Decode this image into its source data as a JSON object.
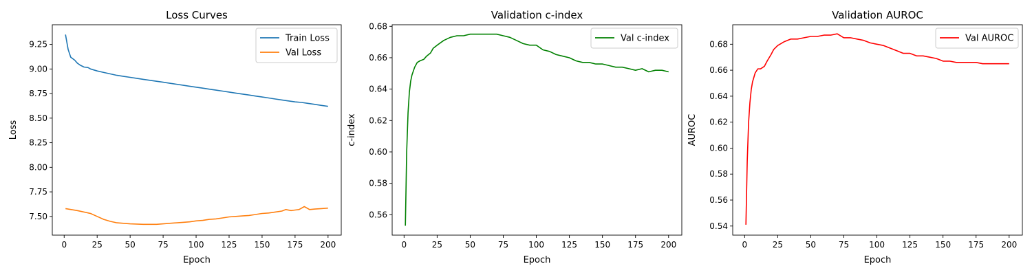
{
  "figure": {
    "charts": [
      "loss-curves",
      "val-cindex",
      "val-auroc"
    ]
  },
  "colors": {
    "train_loss": "#1f77b4",
    "val_loss": "#ff7f0e",
    "val_cindex": "#008000",
    "val_auroc": "#ff0000",
    "axes": "#000000",
    "background": "#ffffff",
    "legend_border": "#cccccc"
  },
  "chart_data": [
    {
      "id": "loss-curves",
      "type": "line",
      "title": "Loss Curves",
      "xlabel": "Epoch",
      "ylabel": "Loss",
      "xlim": [
        -9,
        210
      ],
      "ylim": [
        7.31,
        9.45
      ],
      "xticks": [
        0,
        25,
        50,
        75,
        100,
        125,
        150,
        175,
        200
      ],
      "yticks": [
        7.5,
        7.75,
        8.0,
        8.25,
        8.5,
        8.75,
        9.0,
        9.25
      ],
      "ytick_labels": [
        "7.50",
        "7.75",
        "8.00",
        "8.25",
        "8.50",
        "8.75",
        "9.00",
        "9.25"
      ],
      "grid": false,
      "legend": "top-right",
      "series": [
        {
          "name": "Train Loss",
          "color_key": "train_loss",
          "x": [
            1,
            3,
            5,
            8,
            10,
            12,
            15,
            18,
            20,
            25,
            30,
            35,
            40,
            45,
            50,
            55,
            60,
            65,
            70,
            75,
            80,
            85,
            90,
            95,
            100,
            105,
            110,
            115,
            120,
            125,
            130,
            135,
            140,
            145,
            150,
            155,
            160,
            165,
            170,
            175,
            180,
            185,
            190,
            195,
            200
          ],
          "y": [
            9.35,
            9.2,
            9.12,
            9.09,
            9.06,
            9.04,
            9.02,
            9.015,
            9.0,
            8.98,
            8.965,
            8.95,
            8.935,
            8.925,
            8.915,
            8.905,
            8.895,
            8.885,
            8.875,
            8.865,
            8.855,
            8.845,
            8.835,
            8.825,
            8.815,
            8.805,
            8.795,
            8.785,
            8.775,
            8.765,
            8.755,
            8.745,
            8.735,
            8.725,
            8.715,
            8.705,
            8.695,
            8.685,
            8.675,
            8.665,
            8.66,
            8.65,
            8.64,
            8.63,
            8.62
          ]
        },
        {
          "name": "Val Loss",
          "color_key": "val_loss",
          "x": [
            1,
            10,
            20,
            25,
            30,
            35,
            40,
            50,
            60,
            70,
            75,
            80,
            90,
            95,
            100,
            105,
            110,
            115,
            120,
            125,
            130,
            135,
            140,
            145,
            150,
            155,
            160,
            165,
            168,
            172,
            175,
            178,
            182,
            186,
            190,
            195,
            200
          ],
          "y": [
            7.58,
            7.56,
            7.53,
            7.5,
            7.47,
            7.45,
            7.435,
            7.425,
            7.42,
            7.42,
            7.425,
            7.43,
            7.44,
            7.445,
            7.455,
            7.46,
            7.47,
            7.475,
            7.485,
            7.495,
            7.5,
            7.505,
            7.51,
            7.52,
            7.53,
            7.535,
            7.545,
            7.555,
            7.57,
            7.56,
            7.565,
            7.57,
            7.6,
            7.57,
            7.575,
            7.58,
            7.585
          ]
        }
      ]
    },
    {
      "id": "val-cindex",
      "type": "line",
      "title": "Validation c-index",
      "xlabel": "Epoch",
      "ylabel": "c-index",
      "xlim": [
        -9,
        210
      ],
      "ylim": [
        0.547,
        0.681
      ],
      "xticks": [
        0,
        25,
        50,
        75,
        100,
        125,
        150,
        175,
        200
      ],
      "yticks": [
        0.56,
        0.58,
        0.6,
        0.62,
        0.64,
        0.66,
        0.68
      ],
      "ytick_labels": [
        "0.56",
        "0.58",
        "0.60",
        "0.62",
        "0.64",
        "0.66",
        "0.68"
      ],
      "grid": false,
      "legend": "top-right",
      "series": [
        {
          "name": "Val c-index",
          "color_key": "val_cindex",
          "x": [
            1,
            2,
            3,
            4,
            5,
            6,
            8,
            10,
            12,
            15,
            17,
            20,
            22,
            25,
            30,
            35,
            40,
            45,
            50,
            55,
            60,
            65,
            70,
            75,
            80,
            85,
            90,
            95,
            100,
            105,
            110,
            115,
            120,
            125,
            130,
            135,
            140,
            145,
            150,
            155,
            160,
            165,
            170,
            175,
            180,
            185,
            190,
            195,
            200
          ],
          "y": [
            0.553,
            0.6,
            0.625,
            0.638,
            0.645,
            0.649,
            0.654,
            0.657,
            0.658,
            0.659,
            0.661,
            0.663,
            0.666,
            0.668,
            0.671,
            0.673,
            0.674,
            0.674,
            0.675,
            0.675,
            0.675,
            0.675,
            0.675,
            0.674,
            0.673,
            0.671,
            0.669,
            0.668,
            0.668,
            0.665,
            0.664,
            0.662,
            0.661,
            0.66,
            0.658,
            0.657,
            0.657,
            0.656,
            0.656,
            0.655,
            0.654,
            0.654,
            0.653,
            0.652,
            0.653,
            0.651,
            0.652,
            0.652,
            0.651
          ]
        }
      ]
    },
    {
      "id": "val-auroc",
      "type": "line",
      "title": "Validation AUROC",
      "xlabel": "Epoch",
      "ylabel": "AUROC",
      "xlim": [
        -9,
        210
      ],
      "ylim": [
        0.533,
        0.695
      ],
      "xticks": [
        0,
        25,
        50,
        75,
        100,
        125,
        150,
        175,
        200
      ],
      "yticks": [
        0.54,
        0.56,
        0.58,
        0.6,
        0.62,
        0.64,
        0.66,
        0.68
      ],
      "ytick_labels": [
        "0.54",
        "0.56",
        "0.58",
        "0.60",
        "0.62",
        "0.64",
        "0.66",
        "0.68"
      ],
      "grid": false,
      "legend": "top-right",
      "series": [
        {
          "name": "Val AUROC",
          "color_key": "val_auroc",
          "x": [
            1,
            2,
            3,
            4,
            5,
            6,
            8,
            10,
            12,
            15,
            17,
            20,
            22,
            25,
            30,
            35,
            40,
            45,
            50,
            55,
            60,
            65,
            70,
            75,
            80,
            85,
            90,
            95,
            100,
            105,
            110,
            115,
            120,
            125,
            130,
            135,
            140,
            145,
            150,
            155,
            160,
            165,
            170,
            175,
            180,
            185,
            190,
            195,
            200
          ],
          "y": [
            0.541,
            0.59,
            0.62,
            0.635,
            0.645,
            0.651,
            0.658,
            0.661,
            0.661,
            0.663,
            0.667,
            0.672,
            0.676,
            0.679,
            0.682,
            0.684,
            0.684,
            0.685,
            0.686,
            0.686,
            0.687,
            0.687,
            0.688,
            0.685,
            0.685,
            0.684,
            0.683,
            0.681,
            0.68,
            0.679,
            0.677,
            0.675,
            0.673,
            0.673,
            0.671,
            0.671,
            0.67,
            0.669,
            0.667,
            0.667,
            0.666,
            0.666,
            0.666,
            0.666,
            0.665,
            0.665,
            0.665,
            0.665,
            0.665
          ]
        }
      ]
    }
  ]
}
